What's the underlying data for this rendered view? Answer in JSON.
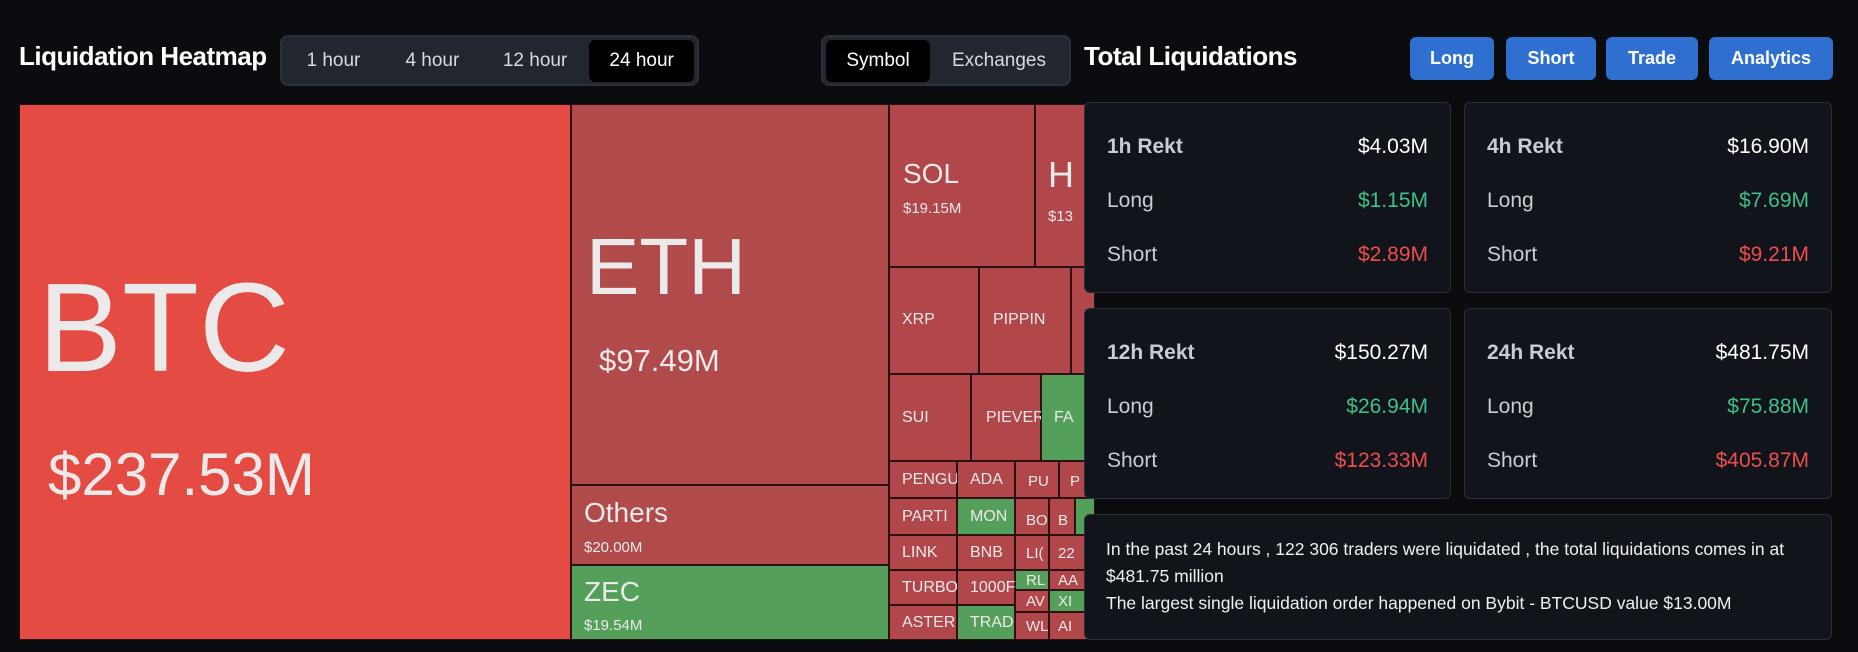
{
  "heatmap": {
    "title": "Liquidation Heatmap",
    "time_tabs": [
      "1 hour",
      "4 hour",
      "12 hour",
      "24 hour"
    ],
    "active_time_tab": "24 hour",
    "view_tabs": [
      "Symbol",
      "Exchanges"
    ],
    "active_view_tab": "Symbol",
    "tiles": {
      "btc": {
        "symbol": "BTC",
        "value": "$237.53M"
      },
      "eth": {
        "symbol": "ETH",
        "value": "$97.49M"
      },
      "others": {
        "symbol": "Others",
        "value": "$20.00M"
      },
      "zec": {
        "symbol": "ZEC",
        "value": "$19.54M"
      },
      "sol": {
        "symbol": "SOL",
        "value": "$19.15M"
      },
      "h": {
        "symbol": "H",
        "value": "$13"
      },
      "xrp": {
        "symbol": "XRP"
      },
      "pippin": {
        "symbol": "PIPPIN"
      },
      "sui": {
        "symbol": "SUI"
      },
      "piever": {
        "symbol": "PIEVER"
      },
      "fa": {
        "symbol": "FA"
      },
      "pengu": {
        "symbol": "PENGU"
      },
      "ada": {
        "symbol": "ADA"
      },
      "pu": {
        "symbol": "PU"
      },
      "p": {
        "symbol": "P"
      },
      "parti": {
        "symbol": "PARTI"
      },
      "mon": {
        "symbol": "MON"
      },
      "bo": {
        "symbol": "BO"
      },
      "b": {
        "symbol": "B"
      },
      "link": {
        "symbol": "LINK"
      },
      "bnb": {
        "symbol": "BNB"
      },
      "li": {
        "symbol": "LI("
      },
      "n22": {
        "symbol": "22"
      },
      "turbo": {
        "symbol": "TURBO"
      },
      "n1000": {
        "symbol": "1000F"
      },
      "rl": {
        "symbol": "RL"
      },
      "aa": {
        "symbol": "AA"
      },
      "aster": {
        "symbol": "ASTER"
      },
      "trad": {
        "symbol": "TRAD"
      },
      "av": {
        "symbol": "AV"
      },
      "xl": {
        "symbol": "XI"
      },
      "wl": {
        "symbol": "WL"
      },
      "al": {
        "symbol": "AI"
      }
    }
  },
  "total": {
    "title": "Total Liquidations",
    "buttons": [
      "Long",
      "Short",
      "Trade",
      "Analytics"
    ],
    "cards": [
      {
        "label": "1h Rekt",
        "total": "$4.03M",
        "long_label": "Long",
        "long": "$1.15M",
        "short_label": "Short",
        "short": "$2.89M"
      },
      {
        "label": "4h Rekt",
        "total": "$16.90M",
        "long_label": "Long",
        "long": "$7.69M",
        "short_label": "Short",
        "short": "$9.21M"
      },
      {
        "label": "12h Rekt",
        "total": "$150.27M",
        "long_label": "Long",
        "long": "$26.94M",
        "short_label": "Short",
        "short": "$123.33M"
      },
      {
        "label": "24h Rekt",
        "total": "$481.75M",
        "long_label": "Long",
        "long": "$75.88M",
        "short_label": "Short",
        "short": "$405.87M"
      }
    ],
    "summary_line1": "In the past 24 hours , 122 306 traders were liquidated , the total liquidations comes in at $481.75 million",
    "summary_line2": "The largest single liquidation order happened on Bybit - BTCUSD value $13.00M"
  },
  "colors": {
    "background": "#0a0c10",
    "accent_button": "#2e6fd0",
    "long_green": "#3ec08a",
    "short_red": "#ec4e4e",
    "tile_red": "#b14a4b",
    "tile_btc": "#e44b43",
    "tile_green": "#54a05a"
  }
}
